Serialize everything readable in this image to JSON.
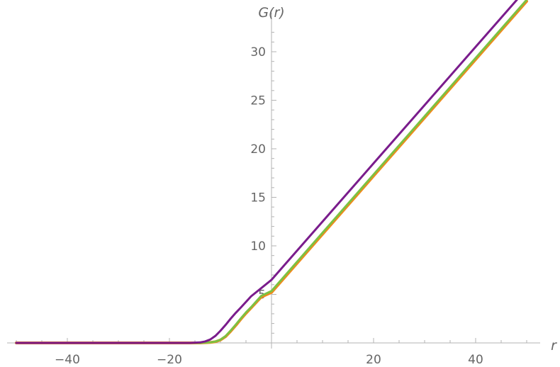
{
  "chart_data": {
    "type": "line",
    "title": "",
    "xlabel": "r",
    "ylabel": "G(r)",
    "xlim": [
      -52,
      52
    ],
    "ylim": [
      0,
      32.5
    ],
    "x_ticks": [
      -40,
      -20,
      20,
      40
    ],
    "x_tick_labels": [
      "−40",
      "−20",
      "20",
      "40"
    ],
    "y_ticks": [
      5,
      10,
      15,
      20,
      25,
      30
    ],
    "y_tick_labels": [
      "5",
      "10",
      "15",
      "20",
      "25",
      "30"
    ],
    "grid": false,
    "legend": "none",
    "series": [
      {
        "color": "#f08a1c",
        "x": [
          -50,
          -20,
          -14,
          -12,
          -11,
          -10,
          -9,
          -8,
          -7,
          -6,
          -5,
          -4,
          -2,
          0,
          10,
          20,
          30,
          40,
          50
        ],
        "y": [
          0,
          0,
          0,
          0.05,
          0.12,
          0.3,
          0.65,
          1.2,
          1.8,
          2.45,
          3.05,
          3.6,
          4.73,
          5.2,
          11.2,
          17.2,
          23.2,
          29.2,
          35.2
        ]
      },
      {
        "color": "#7cc142",
        "x": [
          -50,
          -20,
          -14,
          -12,
          -11,
          -10,
          -9,
          -8,
          -7,
          -6,
          -5,
          -4,
          -2,
          0,
          10,
          20,
          30,
          40,
          50
        ],
        "y": [
          0,
          0,
          0,
          0.06,
          0.14,
          0.33,
          0.7,
          1.27,
          1.88,
          2.53,
          3.14,
          3.68,
          4.85,
          5.35,
          11.35,
          17.35,
          23.35,
          29.35,
          35.35
        ]
      },
      {
        "color": "#7a1c8c",
        "x": [
          -50,
          -20,
          -16,
          -14,
          -13,
          -12,
          -11,
          -10,
          -9,
          -8,
          -7,
          -6,
          -4,
          0,
          10,
          20,
          30,
          40,
          50
        ],
        "y": [
          0,
          0,
          0,
          0.05,
          0.15,
          0.35,
          0.72,
          1.25,
          1.85,
          2.5,
          3.1,
          3.65,
          4.8,
          6.5,
          12.5,
          18.5,
          24.5,
          30.5,
          36.5
        ]
      }
    ]
  }
}
